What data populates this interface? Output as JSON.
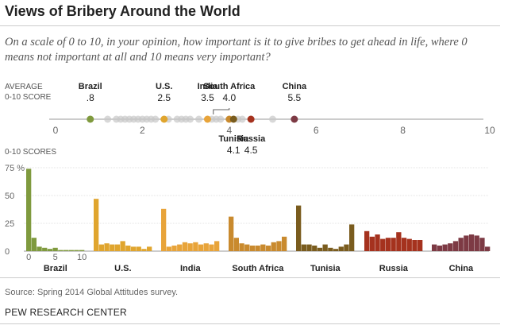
{
  "title": "Views of Bribery Around the World",
  "subtitle": "On a scale of 0 to 10, in your opinion, how important is it to give bribes to get ahead in life, where 0 means not important at all and 10 means very important?",
  "source": "Source: Spring 2014 Global Attitudes survey.",
  "org": "PEW RESEARCH CENTER",
  "chart_data": [
    {
      "type": "scatter",
      "title": "AVERAGE 0-10 SCORE",
      "label_line1": "AVERAGE",
      "label_line2": "0-10 SCORE",
      "xlim": [
        0,
        10
      ],
      "ticks": [
        "0",
        "2",
        "4",
        "6",
        "8",
        "10"
      ],
      "highlighted": [
        {
          "name": "Brazil",
          "value": 0.8,
          "label": ".8",
          "color": "#7f9a3e",
          "side": "above"
        },
        {
          "name": "U.S.",
          "value": 2.5,
          "label": "2.5",
          "color": "#e0a52e",
          "side": "above"
        },
        {
          "name": "India",
          "value": 3.5,
          "label": "3.5",
          "color": "#e8a43a",
          "side": "above"
        },
        {
          "name": "South Africa",
          "value": 4.0,
          "label": "4.0",
          "color": "#c98a2e",
          "side": "above"
        },
        {
          "name": "Tunisia",
          "value": 4.1,
          "label": "4.1",
          "color": "#7a5c1e",
          "side": "below"
        },
        {
          "name": "Russia",
          "value": 4.5,
          "label": "4.5",
          "color": "#a5321e",
          "side": "below"
        },
        {
          "name": "China",
          "value": 5.5,
          "label": "5.5",
          "color": "#7d3a44",
          "side": "above"
        }
      ],
      "other_values": [
        1.2,
        1.4,
        1.5,
        1.6,
        1.7,
        1.8,
        1.9,
        2.0,
        2.1,
        2.2,
        2.3,
        2.6,
        2.8,
        2.9,
        3.0,
        3.1,
        3.3,
        3.6,
        3.7,
        3.8,
        4.2,
        4.3,
        5.0
      ]
    },
    {
      "type": "bar",
      "title": "0-10 SCORES",
      "ylabel": "0-10 SCORES",
      "ylim": [
        0,
        75
      ],
      "yticks": [
        "0",
        "25",
        "50",
        "75 %"
      ],
      "xticks": [
        "0",
        "5",
        "10"
      ],
      "categories": [
        "0",
        "1",
        "2",
        "3",
        "4",
        "5",
        "6",
        "7",
        "8",
        "9",
        "10"
      ],
      "series": [
        {
          "name": "Brazil",
          "color": "#7f9a3e",
          "values": [
            74,
            12,
            4,
            3,
            2,
            3,
            1,
            1,
            1,
            1,
            1
          ]
        },
        {
          "name": "U.S.",
          "color": "#e0a52e",
          "values": [
            47,
            6,
            7,
            6,
            6,
            9,
            5,
            4,
            4,
            2,
            4
          ]
        },
        {
          "name": "India",
          "color": "#e8a43a",
          "values": [
            38,
            4,
            5,
            6,
            8,
            7,
            8,
            6,
            7,
            6,
            9
          ]
        },
        {
          "name": "South Africa",
          "color": "#c98a2e",
          "values": [
            31,
            12,
            7,
            6,
            5,
            5,
            6,
            5,
            8,
            9,
            13
          ]
        },
        {
          "name": "Tunisia",
          "color": "#7a5c1e",
          "values": [
            41,
            6,
            6,
            5,
            3,
            6,
            3,
            2,
            4,
            6,
            24
          ]
        },
        {
          "name": "Russia",
          "color": "#a5321e",
          "values": [
            18,
            13,
            15,
            11,
            12,
            12,
            17,
            12,
            11,
            10,
            10
          ]
        },
        {
          "name": "China",
          "color": "#7d3a44",
          "values": [
            6,
            5,
            6,
            7,
            9,
            12,
            14,
            15,
            14,
            12,
            4
          ]
        }
      ]
    }
  ]
}
